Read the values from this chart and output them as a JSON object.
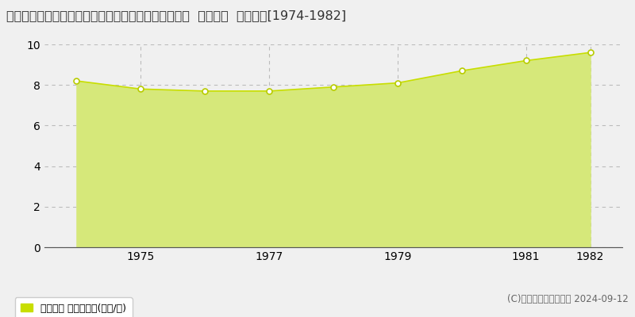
{
  "title": "佐賀県多久市北多久町大字小待字岩の下５９９番２０  地価公示  地価推移[1974-1982]",
  "years": [
    1974,
    1975,
    1976,
    1977,
    1978,
    1979,
    1980,
    1981,
    1982
  ],
  "values": [
    8.2,
    7.8,
    7.7,
    7.7,
    7.9,
    8.1,
    8.7,
    9.2,
    9.6
  ],
  "line_color": "#c8de00",
  "fill_color": "#d6e87a",
  "marker_facecolor": "#ffffff",
  "marker_edgecolor": "#b8cc00",
  "grid_color": "#bbbbbb",
  "background_color": "#f0f0f0",
  "plot_bg_color": "#f0f0f0",
  "ylim": [
    0,
    10
  ],
  "yticks": [
    0,
    2,
    4,
    6,
    8,
    10
  ],
  "xtick_years": [
    1975,
    1977,
    1979,
    1981,
    1982
  ],
  "xlim_left": 1973.5,
  "xlim_right": 1982.5,
  "legend_label": "地価公示 平均坪単価(万円/坪)",
  "legend_square_color": "#c8de00",
  "copyright_text": "(C)土地価格ドットコム 2024-09-12",
  "title_fontsize": 11.5,
  "tick_fontsize": 10,
  "legend_fontsize": 9,
  "copyright_fontsize": 8.5
}
